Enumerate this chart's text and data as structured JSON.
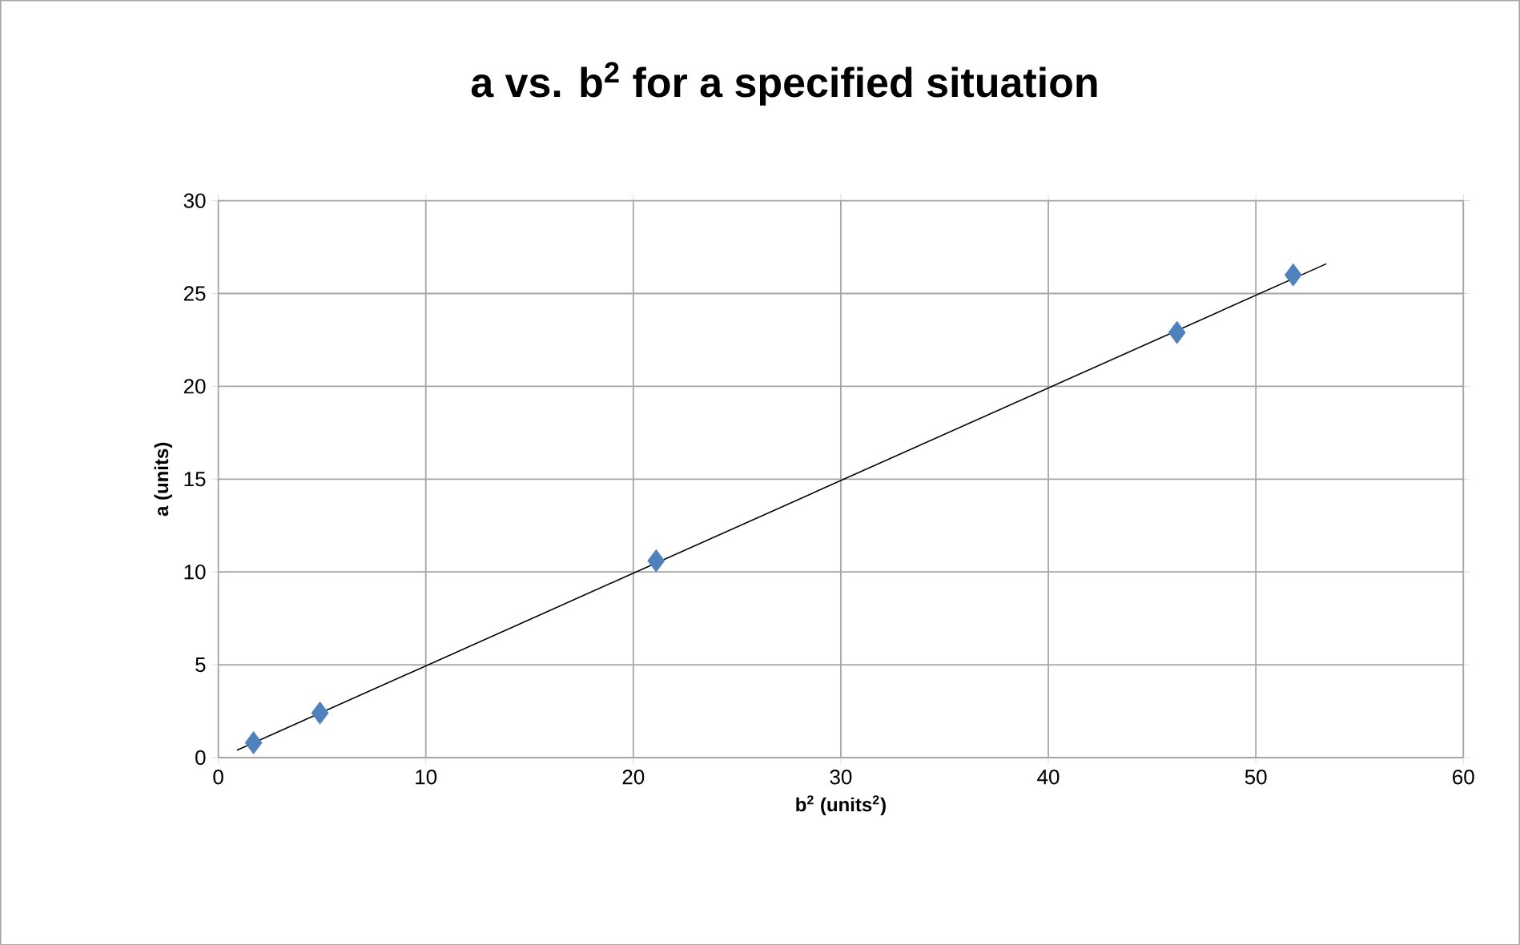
{
  "chart_data": {
    "type": "scatter",
    "title": "a vs. b$^{2}$ for a specified situation",
    "xlabel": "b$^{2}$ (units$^{2}$)",
    "ylabel": "a (units)",
    "xlim": [
      0,
      60
    ],
    "ylim": [
      0,
      30
    ],
    "xticks": [
      0,
      10,
      20,
      30,
      40,
      50,
      60
    ],
    "yticks": [
      0,
      5,
      10,
      15,
      20,
      25,
      30
    ],
    "grid": true,
    "marker": "diamond",
    "series": [
      {
        "color": "#4f81bd",
        "x": [
          1.7,
          4.9,
          21.1,
          46.2,
          51.8
        ],
        "values": [
          0.8,
          2.4,
          10.6,
          22.9,
          26.0
        ]
      },
      {
        "type": "line",
        "color": "#000000",
        "marker": "none",
        "x": [
          0.9,
          53.4
        ],
        "values": [
          0.4,
          26.6
        ]
      }
    ]
  }
}
